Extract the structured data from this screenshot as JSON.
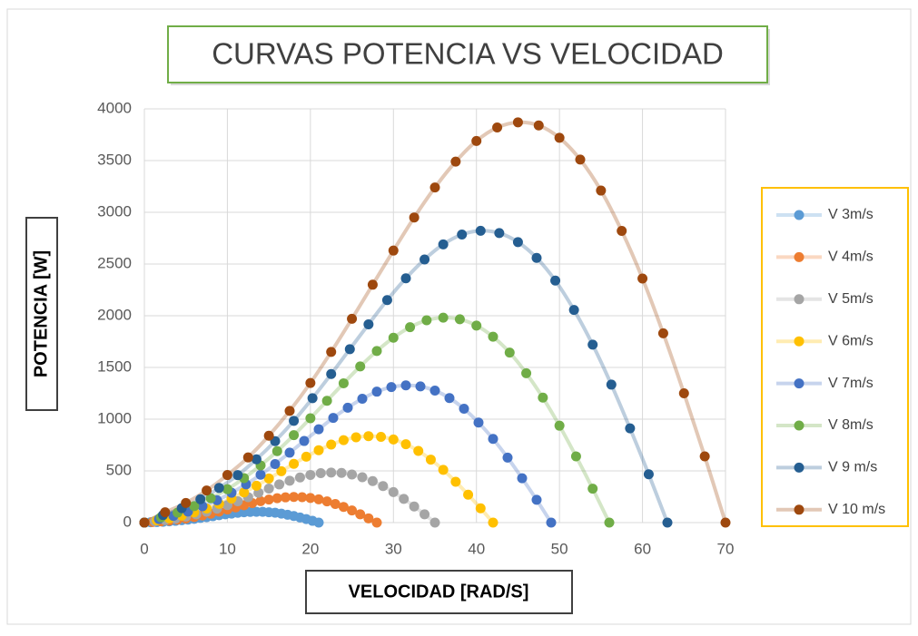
{
  "chart_data": {
    "type": "scatter",
    "title": "CURVAS POTENCIA VS VELOCIDAD",
    "x_label": "VELOCIDAD [RAD/S]",
    "y_label": "POTENCIA [W]",
    "xlim": [
      0,
      70
    ],
    "xticks": [
      0,
      10,
      20,
      30,
      40,
      50,
      60,
      70
    ],
    "ylim": [
      0,
      4000
    ],
    "yticks": [
      0,
      500,
      1000,
      1500,
      2000,
      2500,
      3000,
      3500,
      4000
    ],
    "grid": true,
    "legend": "right",
    "series": [
      {
        "name": "V 3m/s",
        "color": "#5b9bd5",
        "x": [
          0,
          0.75,
          1.5,
          2.25,
          3,
          3.75,
          4.5,
          5.25,
          6,
          6.75,
          7.5,
          8.25,
          9,
          9.75,
          10.5,
          11.25,
          12,
          12.75,
          13.5,
          14.25,
          15,
          15.75,
          16.5,
          17.25,
          18,
          18.75,
          19.5,
          20.25,
          21
        ],
        "values": [
          0,
          3,
          5,
          8,
          12,
          17,
          23,
          29,
          36,
          45,
          53,
          62,
          71,
          80,
          87,
          94,
          100,
          103,
          104,
          104,
          100,
          95,
          87,
          76,
          64,
          49,
          34,
          17,
          0
        ]
      },
      {
        "name": "V 4m/s",
        "color": "#ed7d31",
        "x": [
          0,
          1,
          2,
          3,
          4,
          5,
          6,
          7,
          8,
          9,
          10,
          11,
          12,
          13,
          14,
          15,
          16,
          17,
          18,
          19,
          20,
          21,
          22,
          23,
          24,
          25,
          26,
          27,
          28
        ],
        "values": [
          0,
          6,
          12,
          20,
          29,
          40,
          54,
          69,
          86,
          106,
          126,
          147,
          168,
          189,
          207,
          223,
          236,
          244,
          248,
          246,
          238,
          225,
          205,
          180,
          151,
          117,
          80,
          41,
          0
        ]
      },
      {
        "name": "V 5m/s",
        "color": "#a5a5a5",
        "x": [
          0,
          1.25,
          2.5,
          3.75,
          5,
          6.25,
          7.5,
          8.75,
          10,
          11.25,
          12.5,
          13.75,
          15,
          16.25,
          17.5,
          18.75,
          20,
          21.25,
          22.5,
          23.75,
          25,
          26.25,
          27.5,
          28.75,
          30,
          31.25,
          32.5,
          33.75,
          35
        ],
        "values": [
          0,
          13,
          24,
          39,
          58,
          79,
          105,
          135,
          169,
          206,
          246,
          288,
          329,
          369,
          405,
          436,
          461,
          478,
          484,
          480,
          465,
          439,
          401,
          353,
          295,
          229,
          156,
          80,
          0
        ]
      },
      {
        "name": "V 6m/s",
        "color": "#ffc000",
        "x": [
          0,
          1.5,
          3,
          4.5,
          6,
          7.5,
          9,
          10.5,
          12,
          13.5,
          15,
          16.5,
          18,
          19.5,
          21,
          22.5,
          24,
          25.5,
          27,
          28.5,
          30,
          31.5,
          33,
          34.5,
          36,
          37.5,
          39,
          40.5,
          42
        ],
        "values": [
          0,
          22,
          41,
          67,
          99,
          136,
          181,
          233,
          292,
          356,
          426,
          497,
          568,
          637,
          700,
          754,
          797,
          825,
          836,
          829,
          804,
          758,
          693,
          609,
          510,
          395,
          270,
          138,
          0
        ]
      },
      {
        "name": "V 7m/s",
        "color": "#4472c4",
        "x": [
          0,
          1.75,
          3.5,
          5.25,
          7,
          8.75,
          10.5,
          12.25,
          14,
          15.75,
          17.5,
          19.25,
          21,
          22.75,
          24.5,
          26.25,
          28,
          29.75,
          31.5,
          33.25,
          35,
          36.75,
          38.5,
          40.25,
          42,
          43.75,
          45.5,
          47.25,
          49
        ],
        "values": [
          0,
          34,
          65,
          106,
          158,
          216,
          288,
          370,
          463,
          566,
          676,
          789,
          902,
          1012,
          1111,
          1197,
          1266,
          1310,
          1327,
          1317,
          1276,
          1204,
          1101,
          967,
          809,
          628,
          429,
          220,
          0
        ]
      },
      {
        "name": "V 8m/s",
        "color": "#70ad47",
        "x": [
          0,
          2,
          4,
          6,
          8,
          10,
          12,
          14,
          16,
          18,
          20,
          22,
          24,
          26,
          28,
          30,
          32,
          34,
          36,
          38,
          40,
          42,
          44,
          46,
          48,
          50,
          52,
          54,
          56
        ],
        "values": [
          0,
          51,
          97,
          159,
          236,
          323,
          430,
          553,
          691,
          845,
          1009,
          1178,
          1347,
          1510,
          1659,
          1787,
          1889,
          1956,
          1981,
          1966,
          1905,
          1797,
          1644,
          1444,
          1208,
          937,
          640,
          328,
          0
        ]
      },
      {
        "name": "V 9 m/s",
        "color": "#255e91",
        "x": [
          0,
          2.25,
          4.5,
          6.75,
          9,
          11.25,
          13.5,
          15.75,
          18,
          20.25,
          22.5,
          24.75,
          27,
          29.25,
          31.5,
          33.75,
          36,
          38.25,
          40.5,
          42.75,
          45,
          47.25,
          49.5,
          51.75,
          54,
          56.25,
          58.5,
          60.75,
          63
        ],
        "values": [
          0,
          73,
          139,
          226,
          335,
          459,
          612,
          787,
          984,
          1203,
          1436,
          1677,
          1917,
          2151,
          2362,
          2544,
          2690,
          2785,
          2821,
          2799,
          2712,
          2559,
          2340,
          2056,
          1720,
          1334,
          911,
          467,
          0
        ]
      },
      {
        "name": "V 10 m/s",
        "color": "#9e480e",
        "x": [
          0,
          2.5,
          5,
          7.5,
          10,
          12.5,
          15,
          17.5,
          20,
          22.5,
          25,
          27.5,
          30,
          32.5,
          35,
          37.5,
          40,
          42.5,
          45,
          47.5,
          50,
          52.5,
          55,
          57.5,
          60,
          62.5,
          65,
          67.5,
          70
        ],
        "values": [
          0,
          100,
          190,
          310,
          460,
          630,
          840,
          1080,
          1350,
          1650,
          1970,
          2300,
          2630,
          2950,
          3240,
          3490,
          3690,
          3820,
          3870,
          3840,
          3720,
          3510,
          3210,
          2820,
          2360,
          1830,
          1250,
          640,
          0
        ]
      }
    ]
  }
}
